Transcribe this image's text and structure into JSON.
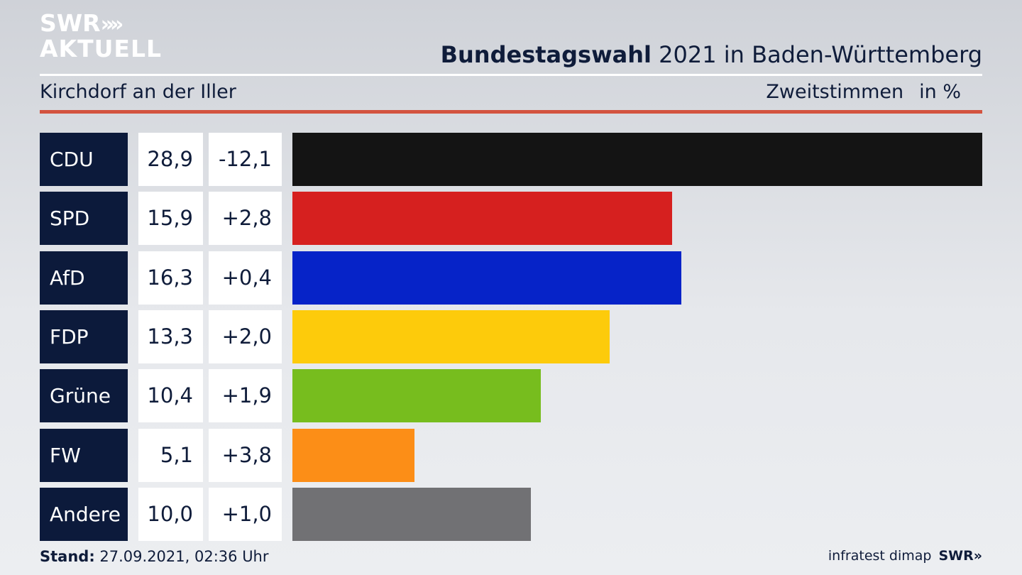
{
  "logo": {
    "line1": "SWR",
    "line2": "AKTUELL",
    "chevrons": "»"
  },
  "header": {
    "title_bold": "Bundestagswahl",
    "title_rest": "2021 in Baden-Württemberg",
    "location": "Kirchdorf an der Iller",
    "metric": "Zweitstimmen",
    "unit": "in %"
  },
  "footer": {
    "stand_label": "Stand:",
    "stand_value": "27.09.2021, 02:36 Uhr",
    "source": "infratest dimap",
    "brand": "SWR»"
  },
  "chart_data": {
    "type": "bar",
    "orientation": "horizontal",
    "categories": [
      "CDU",
      "SPD",
      "AfD",
      "FDP",
      "Grüne",
      "FW",
      "Andere"
    ],
    "values": [
      28.9,
      15.9,
      16.3,
      13.3,
      10.4,
      5.1,
      10.0
    ],
    "value_labels": [
      "28,9",
      "15,9",
      "16,3",
      "13,3",
      "10,4",
      "5,1",
      "10,0"
    ],
    "diff_labels": [
      "-12,1",
      "+2,8",
      "+0,4",
      "+2,0",
      "+1,9",
      "+3,8",
      "+1,0"
    ],
    "colors": [
      "#141414",
      "#d6201f",
      "#0623c8",
      "#fdcb0b",
      "#77bd1e",
      "#fc8e17",
      "#717174"
    ],
    "xlim": [
      0,
      28.9
    ]
  }
}
